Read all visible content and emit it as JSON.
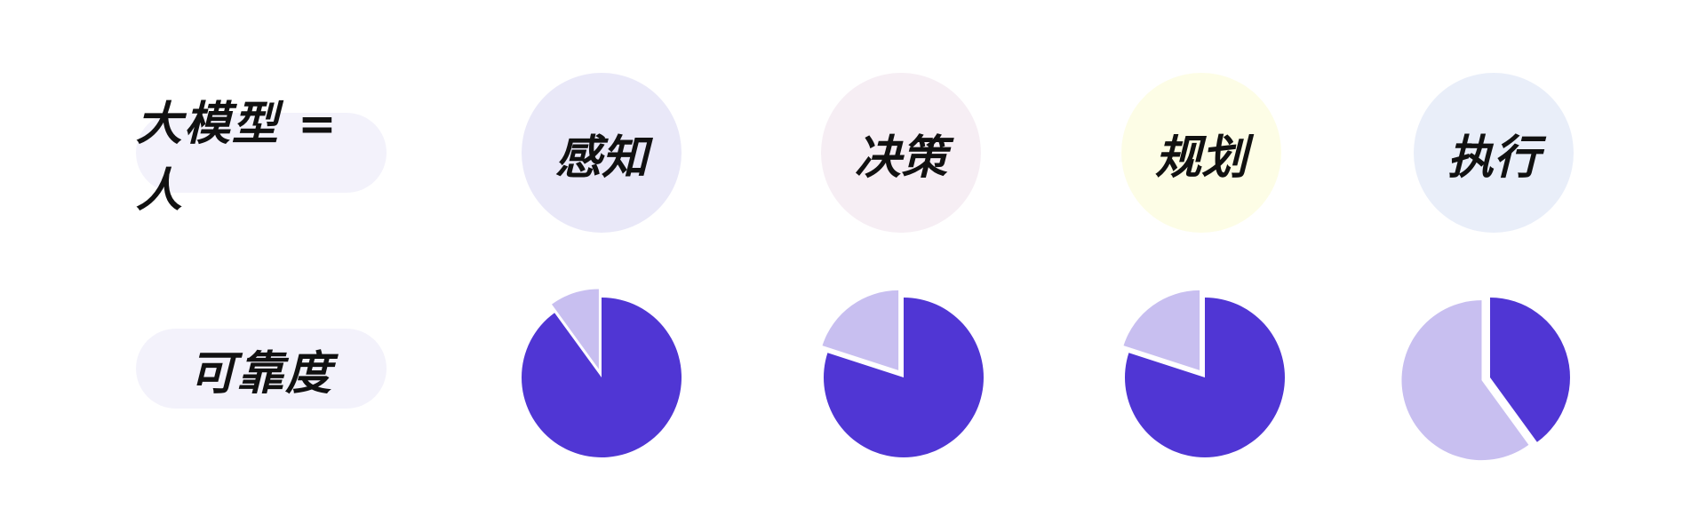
{
  "row_labels": {
    "title": "大模型 = 人",
    "reliability": "可靠度"
  },
  "stages": [
    {
      "label": "感知",
      "bg": "#e9e8f8",
      "reliability": 0.9
    },
    {
      "label": "决策",
      "bg": "#f6eef4",
      "reliability": 0.8
    },
    {
      "label": "规划",
      "bg": "#fdfde6",
      "reliability": 0.8
    },
    {
      "label": "执行",
      "bg": "#e9eef9",
      "reliability": 0.4
    }
  ],
  "colors": {
    "filled": "#5036d4",
    "remaining": "#c8bff0"
  }
}
